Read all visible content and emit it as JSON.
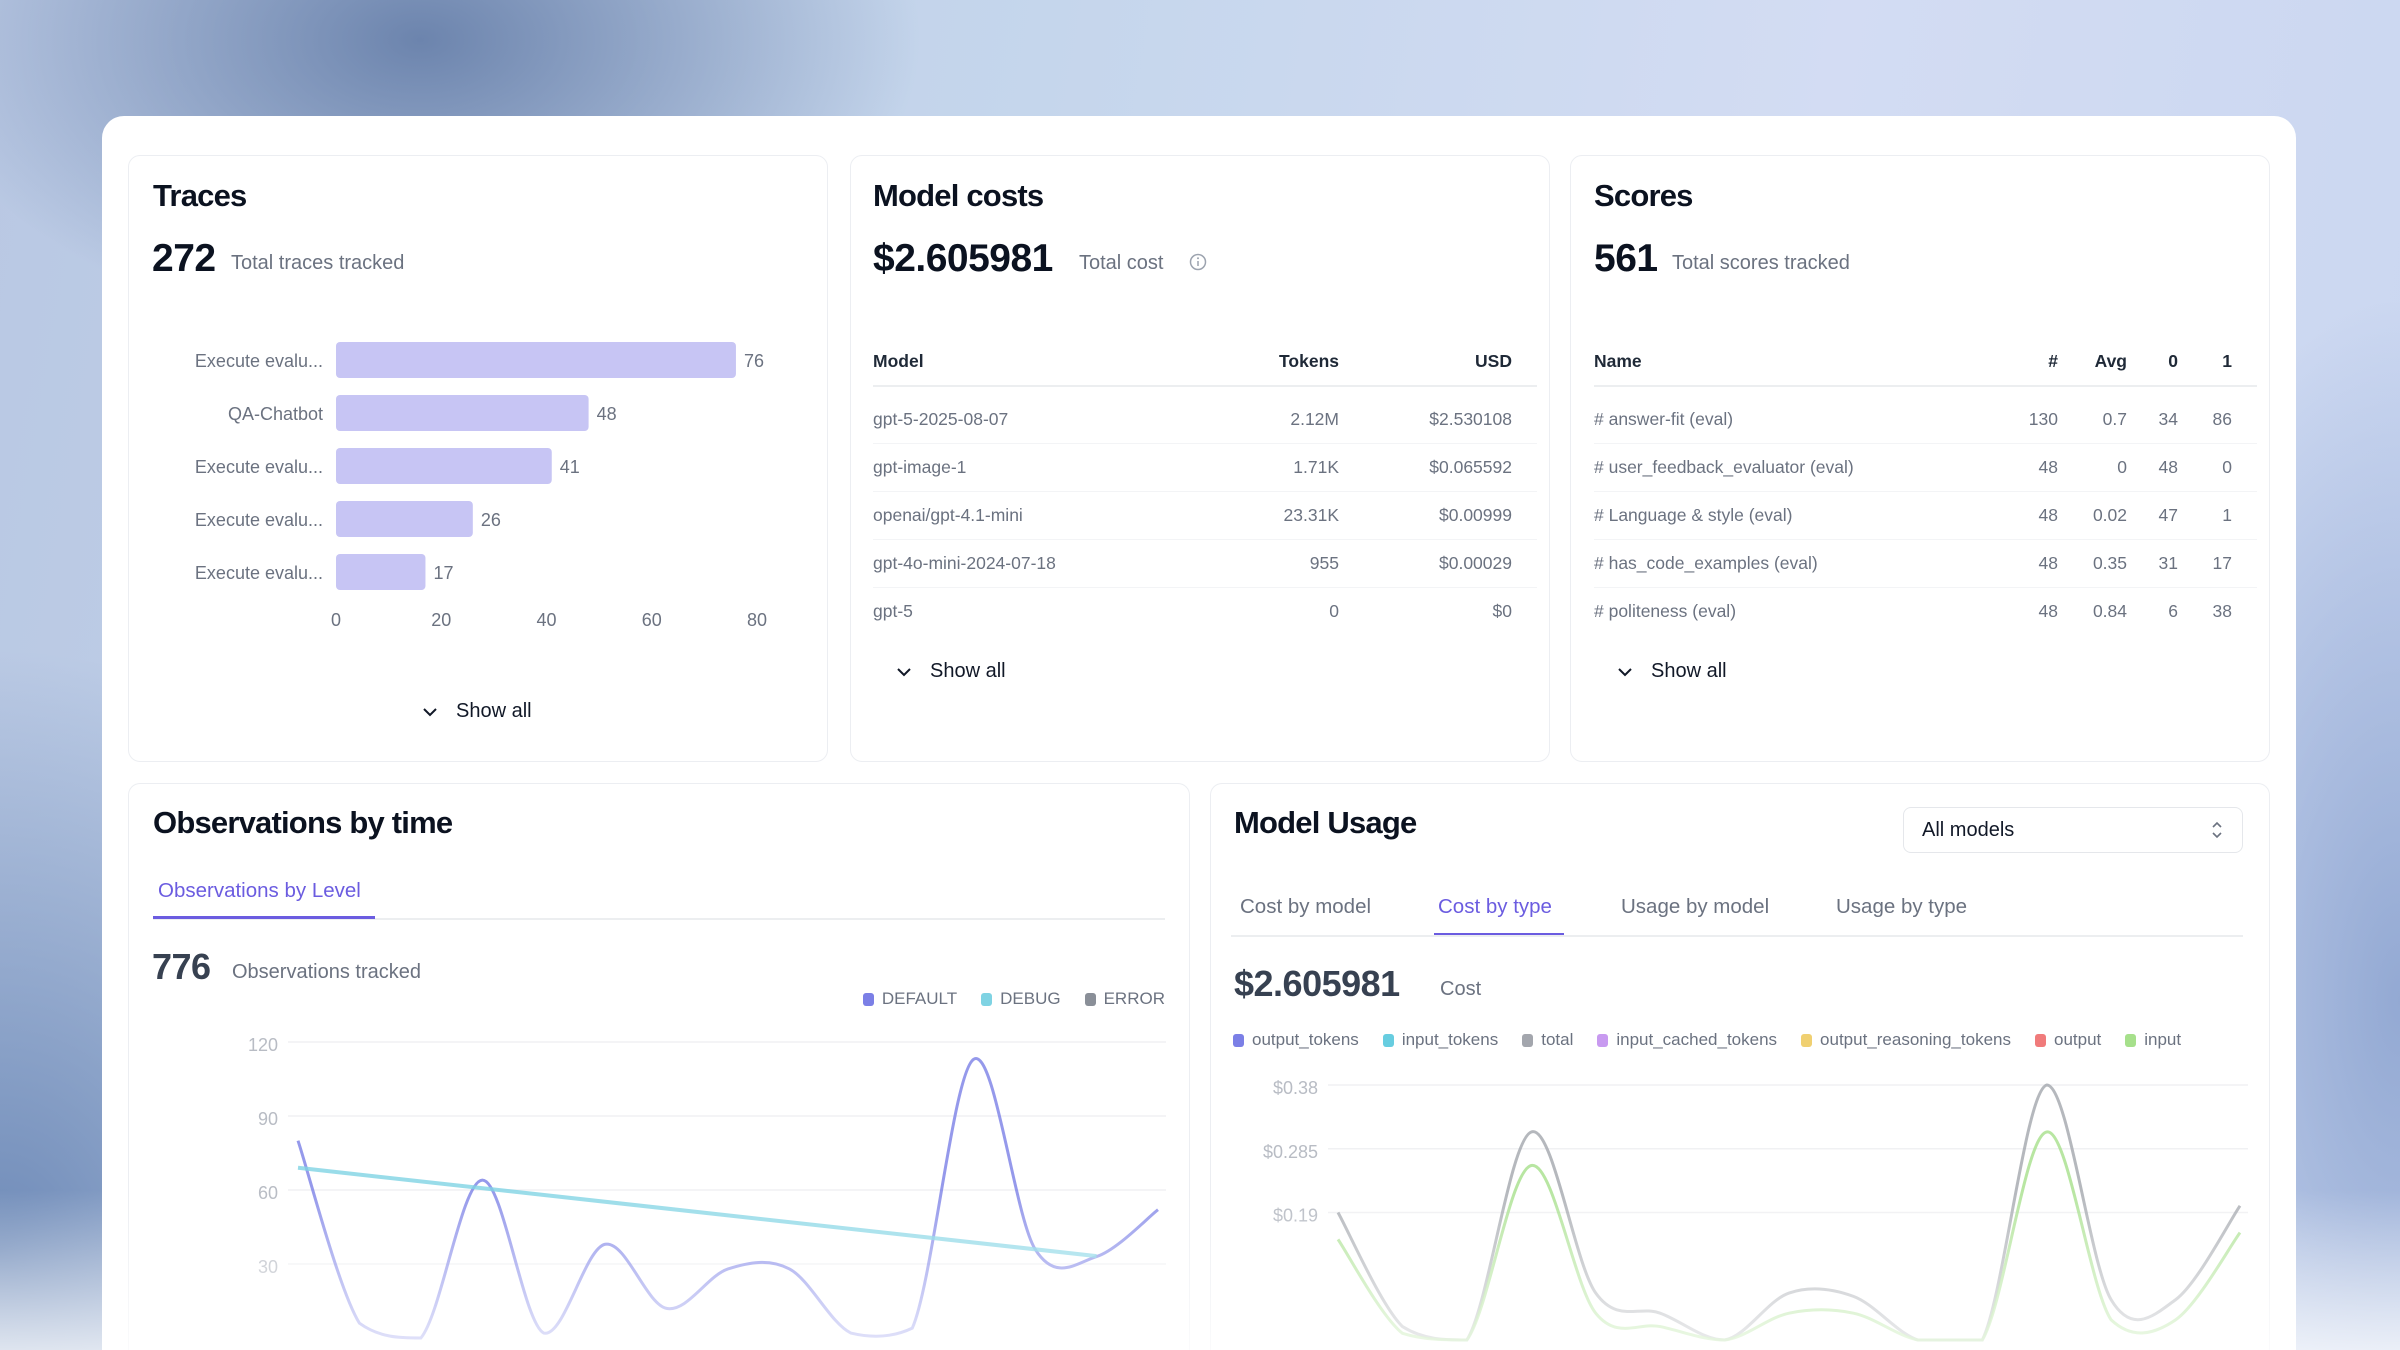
{
  "traces": {
    "title": "Traces",
    "total": "272",
    "total_label": "Total traces tracked",
    "show_all": "Show all",
    "chart_data": {
      "type": "bar",
      "orientation": "horizontal",
      "categories": [
        "Execute evalu...",
        "QA-Chatbot",
        "Execute evalu...",
        "Execute evalu...",
        "Execute evalu..."
      ],
      "values": [
        76,
        48,
        41,
        26,
        17
      ],
      "xlim": [
        0,
        80
      ],
      "xticks": [
        "0",
        "20",
        "40",
        "60",
        "80"
      ],
      "bar_color": "#c7c5f4"
    }
  },
  "model_costs": {
    "title": "Model costs",
    "total": "$2.605981",
    "total_label": "Total cost",
    "columns": [
      "Model",
      "Tokens",
      "USD"
    ],
    "rows": [
      [
        "gpt-5-2025-08-07",
        "2.12M",
        "$2.530108"
      ],
      [
        "gpt-image-1",
        "1.71K",
        "$0.065592"
      ],
      [
        "openai/gpt-4.1-mini",
        "23.31K",
        "$0.00999"
      ],
      [
        "gpt-4o-mini-2024-07-18",
        "955",
        "$0.00029"
      ],
      [
        "gpt-5",
        "0",
        "$0"
      ]
    ],
    "show_all": "Show all"
  },
  "scores": {
    "title": "Scores",
    "total": "561",
    "total_label": "Total scores tracked",
    "columns": [
      "Name",
      "#",
      "Avg",
      "0",
      "1"
    ],
    "rows": [
      [
        "# answer-fit (eval)",
        "130",
        "0.7",
        "34",
        "86"
      ],
      [
        "# user_feedback_evaluator (eval)",
        "48",
        "0",
        "48",
        "0"
      ],
      [
        "# Language & style (eval)",
        "48",
        "0.02",
        "47",
        "1"
      ],
      [
        "# has_code_examples (eval)",
        "48",
        "0.35",
        "31",
        "17"
      ],
      [
        "# politeness (eval)",
        "48",
        "0.84",
        "6",
        "38"
      ]
    ],
    "show_all": "Show all"
  },
  "observations": {
    "title": "Observations by time",
    "tabs": [
      "Observations by Level"
    ],
    "active_tab": 0,
    "total": "776",
    "total_label": "Observations tracked",
    "accent": "#6b5ce0",
    "chart_data": {
      "type": "line",
      "ylim": [
        0,
        120
      ],
      "yticks": [
        "120",
        "90",
        "60",
        "30"
      ],
      "grid": true,
      "legend_position": "top-right",
      "series": [
        {
          "name": "DEFAULT",
          "color": "#7b7fe6",
          "values": [
            80,
            6,
            0,
            64,
            2,
            38,
            12,
            28,
            28,
            2,
            4,
            113,
            36,
            33,
            52
          ]
        },
        {
          "name": "DEBUG",
          "color": "#7fd3e3",
          "values": [
            69,
            66.2,
            63.5,
            60.7,
            58,
            55.2,
            52.5,
            49.7,
            47,
            44.2,
            41.5,
            38.7,
            36,
            33.2,
            null
          ]
        },
        {
          "name": "ERROR",
          "color": "#8a8f98",
          "values": []
        }
      ]
    }
  },
  "model_usage": {
    "title": "Model Usage",
    "model_select": "All models",
    "tabs": [
      "Cost by model",
      "Cost by type",
      "Usage by model",
      "Usage by type"
    ],
    "active_tab": 1,
    "total": "$2.605981",
    "total_label": "Cost",
    "chart_data": {
      "type": "line",
      "ylim": [
        0,
        0.38
      ],
      "yticks": [
        "$0.38",
        "$0.285",
        "$0.19"
      ],
      "grid": true,
      "legend_position": "top",
      "series": [
        {
          "name": "output_tokens",
          "color": "#7b7fe6",
          "values": []
        },
        {
          "name": "input_tokens",
          "color": "#67cde0",
          "values": []
        },
        {
          "name": "total",
          "color": "#a3a6ad",
          "values": [
            0.19,
            0.02,
            0.0,
            0.31,
            0.07,
            0.04,
            0.0,
            0.07,
            0.065,
            0.0,
            0.0,
            0.38,
            0.06,
            0.06,
            0.2
          ]
        },
        {
          "name": "input_cached_tokens",
          "color": "#c89af0",
          "values": []
        },
        {
          "name": "output_reasoning_tokens",
          "color": "#f0d071",
          "values": []
        },
        {
          "name": "output",
          "color": "#f07b7b",
          "values": []
        },
        {
          "name": "input",
          "color": "#a6e08b",
          "values": [
            0.15,
            0.01,
            0.0,
            0.26,
            0.04,
            0.02,
            0.0,
            0.04,
            0.04,
            0.0,
            0.0,
            0.31,
            0.03,
            0.03,
            0.16
          ]
        }
      ]
    }
  }
}
